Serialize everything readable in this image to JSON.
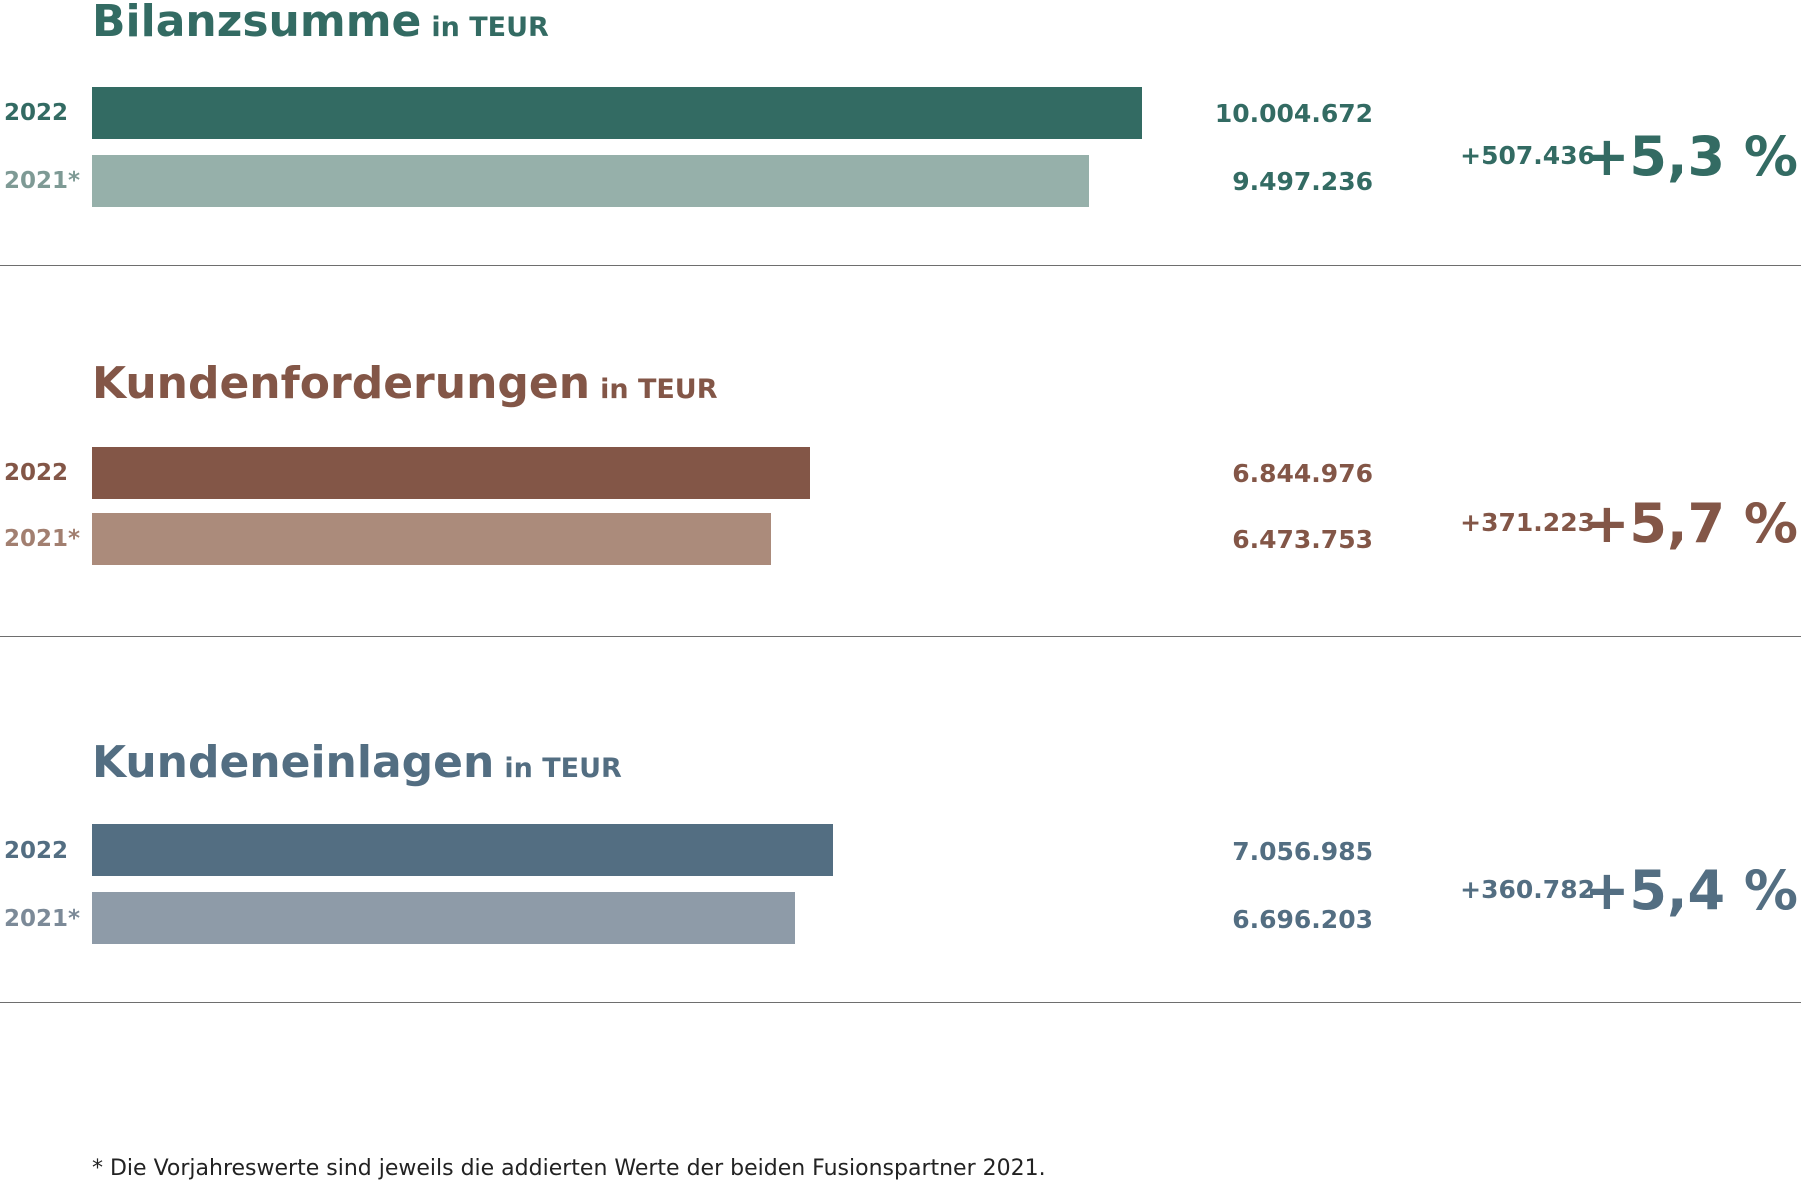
{
  "chart_data": [
    {
      "type": "bar",
      "title": "Bilanzsumme",
      "unit": "in TEUR",
      "categories": [
        "2022",
        "2021*"
      ],
      "values": [
        10004672,
        9497236
      ],
      "labels": [
        "10.004.672",
        "9.497.236"
      ],
      "change_abs": "+507.436",
      "change_pct": "+5,3 %",
      "colors": {
        "current": "#336b63",
        "previous": "#96b0aa",
        "text": "#336b63",
        "prev_text": "#7e9a95"
      }
    },
    {
      "type": "bar",
      "title": "Kundenforderungen",
      "unit": "in TEUR",
      "categories": [
        "2022",
        "2021*"
      ],
      "values": [
        6844976,
        6473753
      ],
      "labels": [
        "6.844.976",
        "6.473.753"
      ],
      "change_abs": "+371.223",
      "change_pct": "+5,7 %",
      "colors": {
        "current": "#835647",
        "previous": "#ab8b7b",
        "text": "#835647",
        "prev_text": "#a27f70"
      }
    },
    {
      "type": "bar",
      "title": "Kundeneinlagen",
      "unit": "in TEUR",
      "categories": [
        "2022",
        "2021*"
      ],
      "values": [
        7056985,
        6696203
      ],
      "labels": [
        "7.056.985",
        "6.696.203"
      ],
      "change_abs": "+360.782",
      "change_pct": "+5,4 %",
      "colors": {
        "current": "#536e82",
        "previous": "#8e9ba8",
        "text": "#536e82",
        "prev_text": "#7c8a98"
      }
    }
  ],
  "footnote": "* Die Vorjahreswerte sind jeweils die addierten Werte der beiden Fusionspartner 2021."
}
